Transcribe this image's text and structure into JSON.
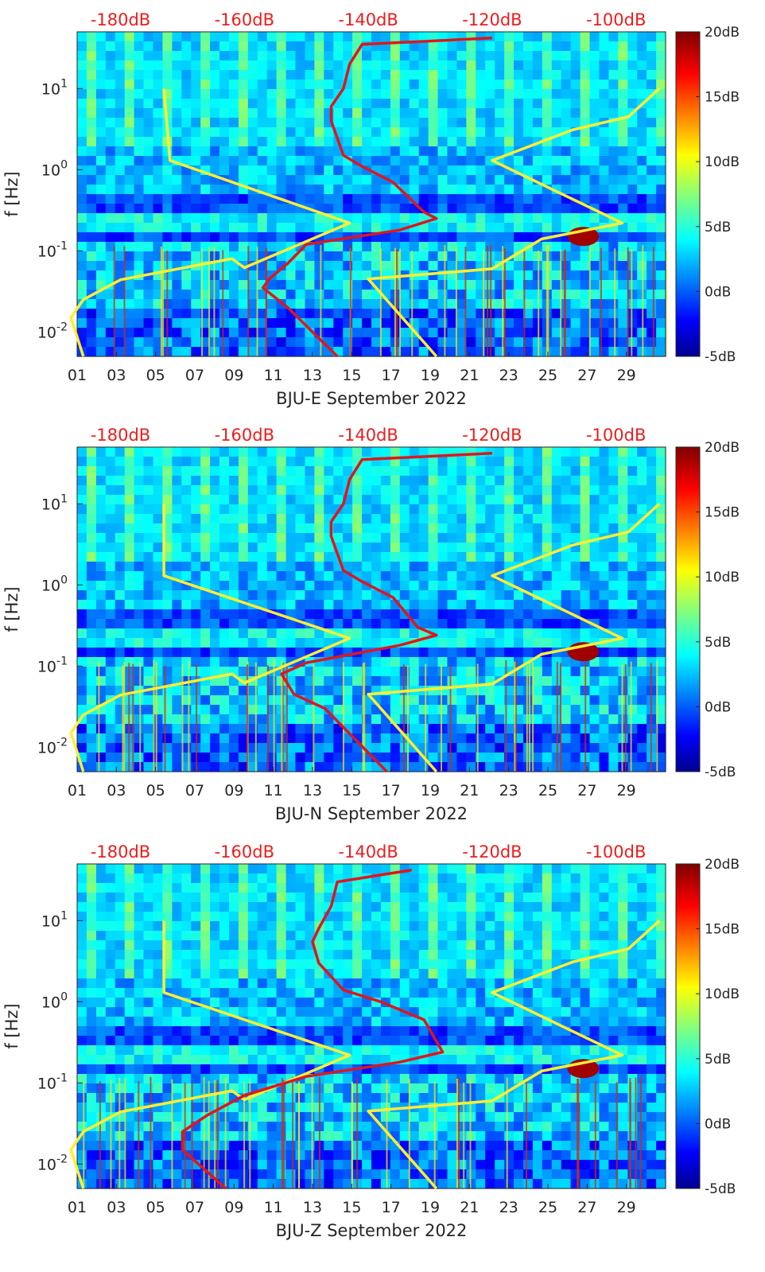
{
  "colors": {
    "line_yellow": "#ffee33",
    "line_red": "#e0161c",
    "top_label_red": "#ee1c1c"
  },
  "chart_data": [
    {
      "type": "heatmap",
      "xlabel": "BJU-E September 2022",
      "ylabel": "f [Hz]",
      "x_ticks": [
        "01",
        "03",
        "05",
        "07",
        "09",
        "11",
        "13",
        "15",
        "17",
        "19",
        "21",
        "23",
        "25",
        "27",
        "29"
      ],
      "y_ticks": [
        {
          "value": 10,
          "label": "10^1"
        },
        {
          "value": 1,
          "label": "10^0"
        },
        {
          "value": 0.1,
          "label": "10^-1"
        },
        {
          "value": 0.01,
          "label": "10^-2"
        }
      ],
      "y_scale": "log",
      "ylim": [
        0.005,
        50
      ],
      "xlim": [
        1,
        31
      ],
      "top_axis_ticks": [
        "-180dB",
        "-160dB",
        "-140dB",
        "-120dB",
        "-100dB"
      ],
      "top_axis_range": [
        -187,
        -92
      ],
      "colorbar": {
        "range": [
          -5,
          20
        ],
        "ticks": [
          "20dB",
          "15dB",
          "10dB",
          "5dB",
          "0dB",
          "-5dB"
        ],
        "colormap": "jet"
      },
      "series": [
        {
          "color": "yellow",
          "points": [
            [
              -173,
              10
            ],
            [
              -172,
              1.3
            ],
            [
              -143,
              0.22
            ],
            [
              -160,
              0.062
            ],
            [
              -162,
              0.08
            ],
            [
              -180,
              0.044
            ],
            [
              -186,
              0.025
            ],
            [
              -188,
              0.015
            ],
            [
              -186,
              0.005
            ]
          ]
        },
        {
          "color": "yellow",
          "points": [
            [
              -93,
              10
            ],
            [
              -98,
              4.5
            ],
            [
              -107,
              3.1
            ],
            [
              -120,
              1.3
            ],
            [
              -99,
              0.22
            ],
            [
              -112,
              0.14
            ],
            [
              -120,
              0.06
            ],
            [
              -140,
              0.045
            ],
            [
              -129,
              0.005
            ]
          ]
        },
        {
          "color": "red",
          "points": [
            [
              -120,
              42
            ],
            [
              -141,
              35
            ],
            [
              -143,
              20
            ],
            [
              -144,
              10
            ],
            [
              -146,
              6
            ],
            [
              -146,
              4
            ],
            [
              -144,
              1.5
            ],
            [
              -141,
              1.1
            ],
            [
              -136,
              0.7
            ],
            [
              -131,
              0.3
            ],
            [
              -129,
              0.25
            ],
            [
              -135,
              0.18
            ],
            [
              -150,
              0.12
            ],
            [
              -153,
              0.07
            ],
            [
              -156,
              0.045
            ],
            [
              -157,
              0.035
            ],
            [
              -153,
              0.02
            ],
            [
              -145,
              0.005
            ]
          ]
        }
      ]
    },
    {
      "type": "heatmap",
      "xlabel": "BJU-N September 2022",
      "ylabel": "f [Hz]",
      "x_ticks": [
        "01",
        "03",
        "05",
        "07",
        "09",
        "11",
        "13",
        "15",
        "17",
        "19",
        "21",
        "23",
        "25",
        "27",
        "29"
      ],
      "y_ticks": [
        {
          "value": 10,
          "label": "10^1"
        },
        {
          "value": 1,
          "label": "10^0"
        },
        {
          "value": 0.1,
          "label": "10^-1"
        },
        {
          "value": 0.01,
          "label": "10^-2"
        }
      ],
      "y_scale": "log",
      "ylim": [
        0.005,
        50
      ],
      "xlim": [
        1,
        31
      ],
      "top_axis_ticks": [
        "-180dB",
        "-160dB",
        "-140dB",
        "-120dB",
        "-100dB"
      ],
      "top_axis_range": [
        -187,
        -92
      ],
      "colorbar": {
        "range": [
          -5,
          20
        ],
        "ticks": [
          "20dB",
          "15dB",
          "10dB",
          "5dB",
          "0dB",
          "-5dB"
        ],
        "colormap": "jet"
      },
      "series": [
        {
          "color": "yellow",
          "points": [
            [
              -173,
              10
            ],
            [
              -173,
              1.3
            ],
            [
              -143,
              0.22
            ],
            [
              -160,
              0.062
            ],
            [
              -162,
              0.08
            ],
            [
              -180,
              0.044
            ],
            [
              -186,
              0.025
            ],
            [
              -188,
              0.015
            ],
            [
              -186,
              0.005
            ]
          ]
        },
        {
          "color": "yellow",
          "points": [
            [
              -93,
              10
            ],
            [
              -98,
              4.5
            ],
            [
              -107,
              3.1
            ],
            [
              -120,
              1.3
            ],
            [
              -99,
              0.22
            ],
            [
              -112,
              0.14
            ],
            [
              -120,
              0.06
            ],
            [
              -140,
              0.045
            ],
            [
              -129,
              0.005
            ]
          ]
        },
        {
          "color": "red",
          "points": [
            [
              -120,
              42
            ],
            [
              -141,
              35
            ],
            [
              -143,
              20
            ],
            [
              -144,
              10
            ],
            [
              -146,
              6
            ],
            [
              -146,
              4
            ],
            [
              -144,
              1.5
            ],
            [
              -141,
              1.1
            ],
            [
              -136,
              0.7
            ],
            [
              -132,
              0.3
            ],
            [
              -129,
              0.24
            ],
            [
              -135,
              0.18
            ],
            [
              -150,
              0.11
            ],
            [
              -154,
              0.08
            ],
            [
              -152,
              0.045
            ],
            [
              -147,
              0.03
            ],
            [
              -137,
              0.005
            ]
          ]
        }
      ]
    },
    {
      "type": "heatmap",
      "xlabel": "BJU-Z September 2022",
      "ylabel": "f [Hz]",
      "x_ticks": [
        "01",
        "03",
        "05",
        "07",
        "09",
        "11",
        "13",
        "15",
        "17",
        "19",
        "21",
        "23",
        "25",
        "27",
        "29"
      ],
      "y_ticks": [
        {
          "value": 10,
          "label": "10^1"
        },
        {
          "value": 1,
          "label": "10^0"
        },
        {
          "value": 0.1,
          "label": "10^-1"
        },
        {
          "value": 0.01,
          "label": "10^-2"
        }
      ],
      "y_scale": "log",
      "ylim": [
        0.005,
        50
      ],
      "xlim": [
        1,
        31
      ],
      "top_axis_ticks": [
        "-180dB",
        "-160dB",
        "-140dB",
        "-120dB",
        "-100dB"
      ],
      "top_axis_range": [
        -187,
        -92
      ],
      "colorbar": {
        "range": [
          -5,
          20
        ],
        "ticks": [
          "20dB",
          "15dB",
          "10dB",
          "5dB",
          "0dB",
          "-5dB"
        ],
        "colormap": "jet"
      },
      "series": [
        {
          "color": "yellow",
          "points": [
            [
              -173,
              10
            ],
            [
              -173,
              1.3
            ],
            [
              -143,
              0.22
            ],
            [
              -160,
              0.062
            ],
            [
              -162,
              0.08
            ],
            [
              -180,
              0.044
            ],
            [
              -186,
              0.025
            ],
            [
              -188,
              0.015
            ],
            [
              -186,
              0.005
            ]
          ]
        },
        {
          "color": "yellow",
          "points": [
            [
              -93,
              10
            ],
            [
              -98,
              4.5
            ],
            [
              -107,
              3.1
            ],
            [
              -120,
              1.3
            ],
            [
              -99,
              0.22
            ],
            [
              -112,
              0.14
            ],
            [
              -120,
              0.06
            ],
            [
              -140,
              0.045
            ],
            [
              -129,
              0.005
            ]
          ]
        },
        {
          "color": "red",
          "points": [
            [
              -133,
              42
            ],
            [
              -145,
              30
            ],
            [
              -146,
              15
            ],
            [
              -148,
              8
            ],
            [
              -149,
              5.5
            ],
            [
              -148,
              3
            ],
            [
              -144,
              1.4
            ],
            [
              -138,
              1.0
            ],
            [
              -131,
              0.6
            ],
            [
              -128,
              0.24
            ],
            [
              -135,
              0.18
            ],
            [
              -150,
              0.12
            ],
            [
              -160,
              0.07
            ],
            [
              -166,
              0.04
            ],
            [
              -170,
              0.025
            ],
            [
              -170,
              0.015
            ],
            [
              -163,
              0.005
            ]
          ]
        }
      ]
    }
  ]
}
